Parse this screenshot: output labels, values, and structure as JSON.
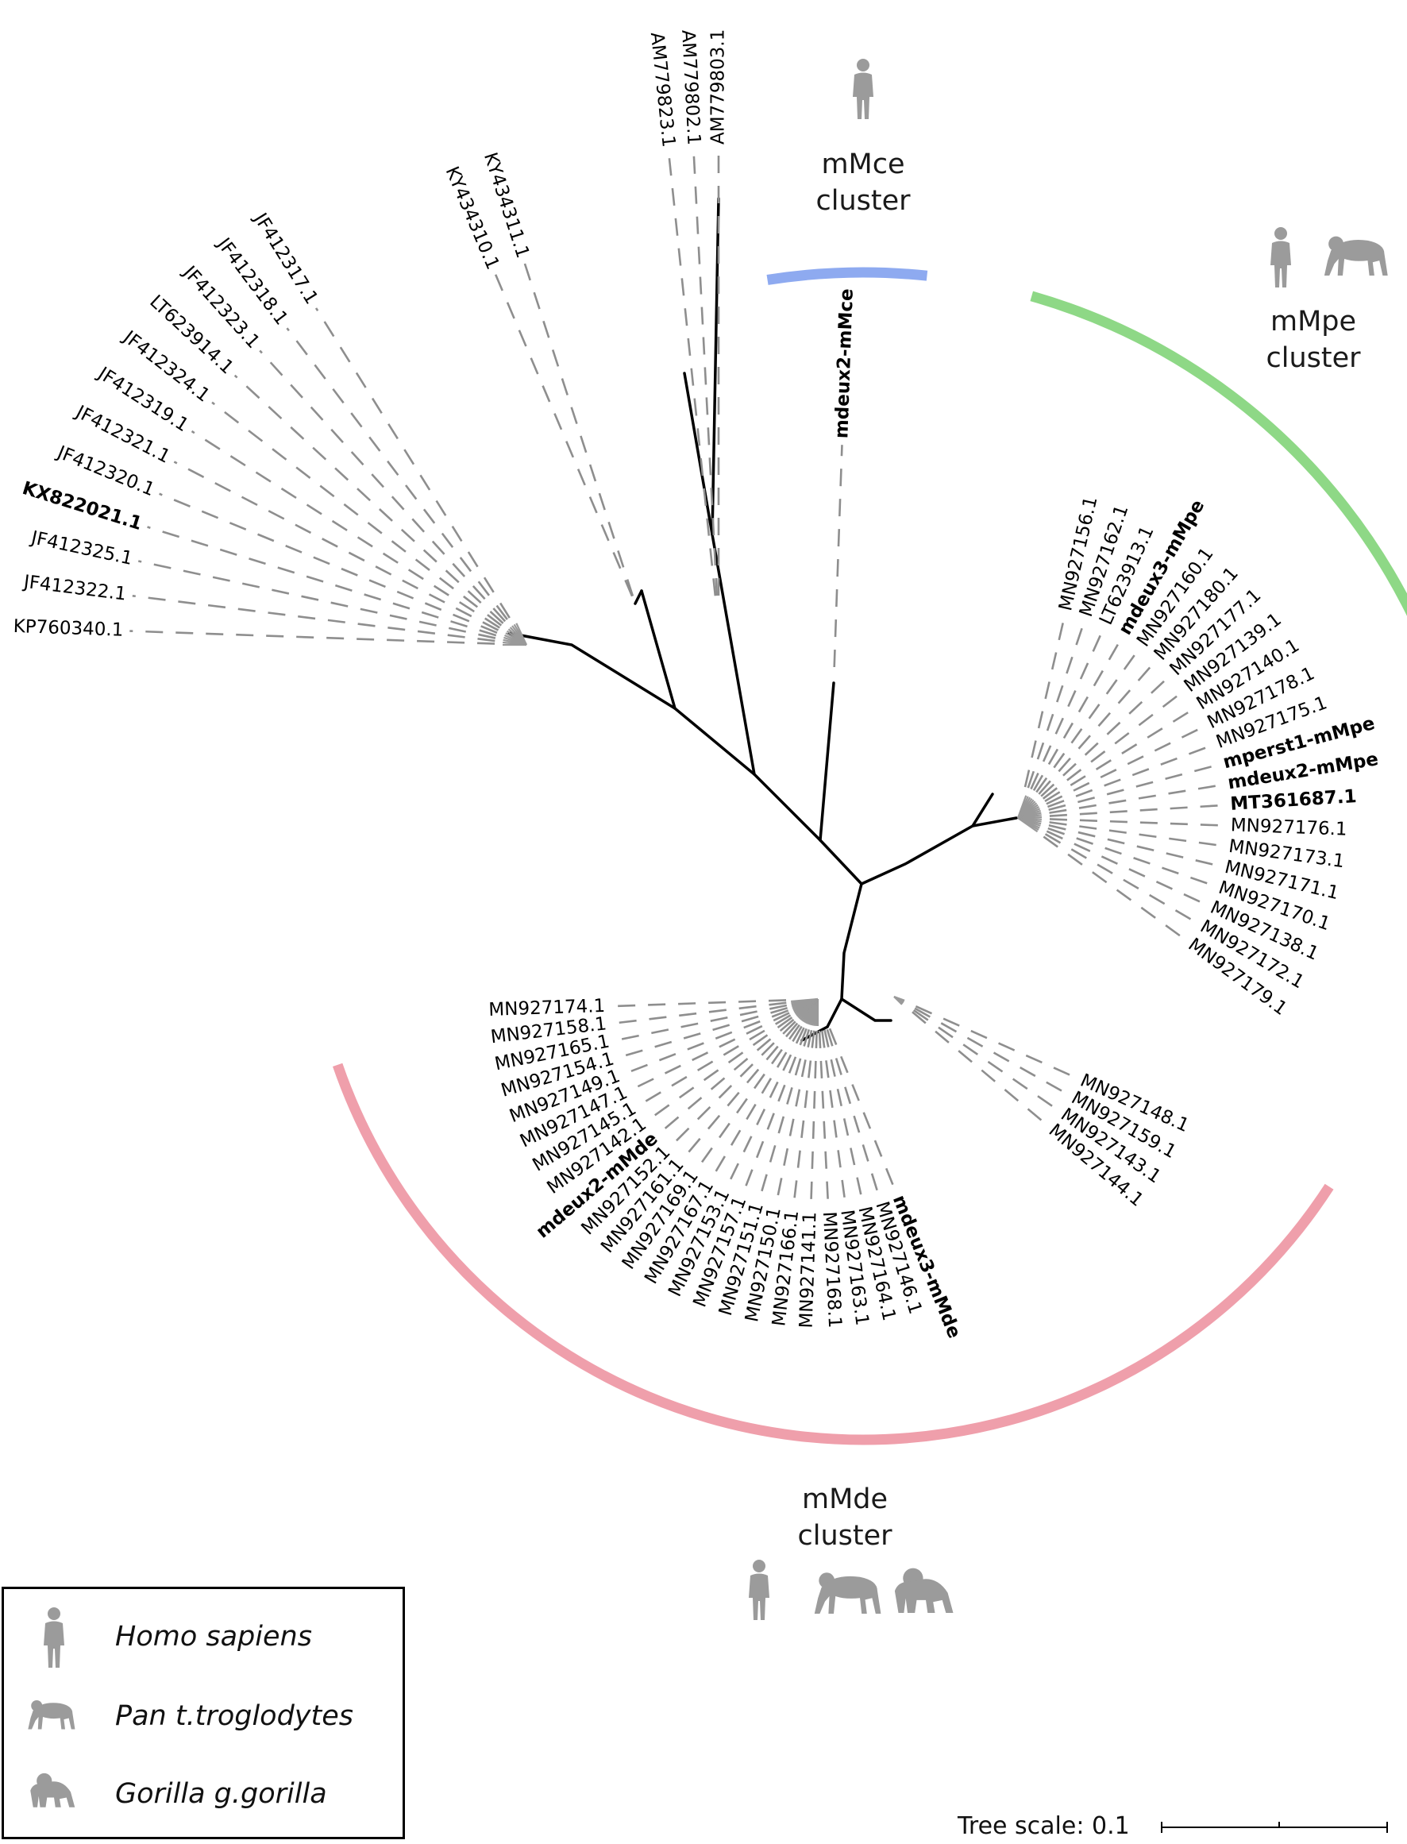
{
  "clusters": {
    "mmce": {
      "name": "mMce",
      "word": "cluster",
      "color": "#8eaaf0"
    },
    "mmpe": {
      "name": "mMpe",
      "word": "cluster",
      "color": "#8ed886"
    },
    "mmde": {
      "name": "mMde",
      "word": "cluster",
      "color": "#ef9fab"
    }
  },
  "leaves": {
    "outgroup": [
      {
        "label": "KP760340.1"
      },
      {
        "label": "JF412322.1"
      },
      {
        "label": "JF412325.1"
      },
      {
        "label": "KX822021.1",
        "bold": true
      },
      {
        "label": "JF412320.1"
      },
      {
        "label": "JF412321.1"
      },
      {
        "label": "JF412319.1"
      },
      {
        "label": "JF412324.1"
      },
      {
        "label": "LT623914.1"
      },
      {
        "label": "JF412323.1"
      },
      {
        "label": "JF412318.1"
      },
      {
        "label": "JF412317.1"
      }
    ],
    "ky": [
      {
        "label": "KY434310.1"
      },
      {
        "label": "KY434311.1"
      }
    ],
    "am": [
      {
        "label": "AM779823.1"
      },
      {
        "label": "AM779802.1"
      },
      {
        "label": "AM779803.1"
      }
    ],
    "mmce": [
      {
        "label": "mdeux2-mMce",
        "bold": true
      }
    ],
    "mmpe": [
      {
        "label": "MN927156.1"
      },
      {
        "label": "MN927162.1"
      },
      {
        "label": "LT623913.1"
      },
      {
        "label": "mdeux3-mMpe",
        "bold": true
      },
      {
        "label": "MN927160.1"
      },
      {
        "label": "MN927180.1"
      },
      {
        "label": "MN927177.1"
      },
      {
        "label": "MN927139.1"
      },
      {
        "label": "MN927140.1"
      },
      {
        "label": "MN927178.1"
      },
      {
        "label": "MN927175.1"
      },
      {
        "label": "mperst1-mMpe",
        "bold": true
      },
      {
        "label": "mdeux2-mMpe",
        "bold": true
      },
      {
        "label": "MT361687.1",
        "bold": true
      },
      {
        "label": "MN927176.1"
      },
      {
        "label": "MN927173.1"
      },
      {
        "label": "MN927171.1"
      },
      {
        "label": "MN927170.1"
      },
      {
        "label": "MN927138.1"
      },
      {
        "label": "MN927172.1"
      },
      {
        "label": "MN927179.1"
      }
    ],
    "mmde_small": [
      {
        "label": "MN927148.1"
      },
      {
        "label": "MN927159.1"
      },
      {
        "label": "MN927143.1"
      },
      {
        "label": "MN927144.1"
      }
    ],
    "mmde": [
      {
        "label": "MN927174.1"
      },
      {
        "label": "MN927158.1"
      },
      {
        "label": "MN927165.1"
      },
      {
        "label": "MN927154.1"
      },
      {
        "label": "MN927149.1"
      },
      {
        "label": "MN927147.1"
      },
      {
        "label": "MN927145.1"
      },
      {
        "label": "MN927142.1"
      },
      {
        "label": "mdeux2-mMde",
        "bold": true
      },
      {
        "label": "MN927152.1"
      },
      {
        "label": "MN927161.1"
      },
      {
        "label": "MN927169.1"
      },
      {
        "label": "MN927167.1"
      },
      {
        "label": "MN927153.1"
      },
      {
        "label": "MN927157.1"
      },
      {
        "label": "MN927151.1"
      },
      {
        "label": "MN927150.1"
      },
      {
        "label": "MN927166.1"
      },
      {
        "label": "MN927141.1"
      },
      {
        "label": "MN927168.1"
      },
      {
        "label": "MN927163.1"
      },
      {
        "label": "MN927164.1"
      },
      {
        "label": "MN927146.1"
      },
      {
        "label": "mdeux3-mMde",
        "bold": true
      }
    ]
  },
  "legend": [
    {
      "species": "Homo sapiens",
      "icon": "human-icon"
    },
    {
      "species": "Pan t.troglodytes",
      "icon": "chimpanzee-icon"
    },
    {
      "species": "Gorilla g.gorilla",
      "icon": "gorilla-icon"
    }
  ],
  "scale": {
    "label": "Tree scale: 0.1"
  }
}
